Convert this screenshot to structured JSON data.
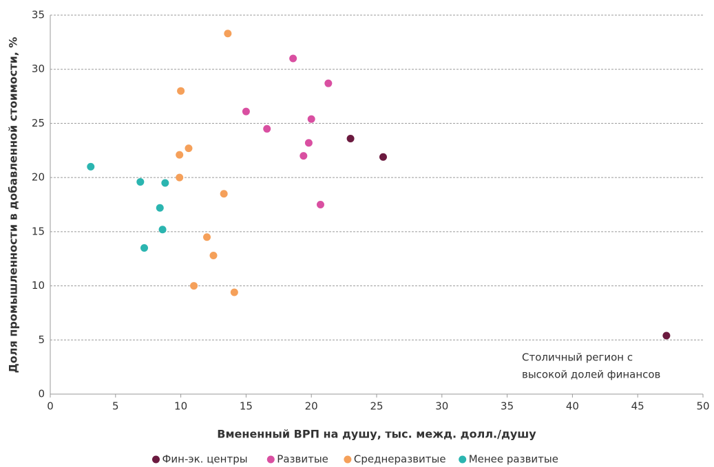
{
  "chart_data": {
    "type": "scatter",
    "xlabel": "Вмененный ВРП на душу, тыс. межд. долл./душу",
    "ylabel": "Доля промышленности в добавленной стоимости, %",
    "xlim": [
      0,
      50
    ],
    "xticks": [
      0,
      5,
      10,
      15,
      20,
      25,
      30,
      35,
      40,
      45,
      50
    ],
    "ylim": [
      0,
      35
    ],
    "yticks": [
      0,
      5,
      10,
      15,
      20,
      25,
      30,
      35
    ],
    "grid": true,
    "legend": "bottom",
    "annotation": [
      "Столичный регион с",
      "высокой долей финансов"
    ],
    "series": [
      {
        "name": "Фин-эк. центры",
        "color": "#6b1a3f",
        "x": [
          23.0,
          25.5,
          47.2
        ],
        "values": [
          23.6,
          21.9,
          5.4
        ]
      },
      {
        "name": "Развитые",
        "color": "#d94fa1",
        "x": [
          18.6,
          21.3,
          15.0,
          20.0,
          16.6,
          19.8,
          19.4,
          20.7
        ],
        "values": [
          31.0,
          28.7,
          26.1,
          25.4,
          24.5,
          23.2,
          22.0,
          17.5
        ]
      },
      {
        "name": "Среднеразвитые",
        "color": "#f5a05a",
        "x": [
          13.6,
          10.0,
          10.6,
          9.9,
          9.9,
          13.3,
          12.0,
          12.5,
          11.0,
          14.1
        ],
        "values": [
          33.3,
          28.0,
          22.7,
          22.1,
          20.0,
          18.5,
          14.5,
          12.8,
          10.0,
          9.4
        ]
      },
      {
        "name": "Менее развитые",
        "color": "#2bb5b0",
        "x": [
          3.1,
          6.9,
          8.8,
          8.4,
          8.6,
          7.2
        ],
        "values": [
          21.0,
          19.6,
          19.5,
          17.2,
          15.2,
          13.5
        ]
      }
    ]
  }
}
